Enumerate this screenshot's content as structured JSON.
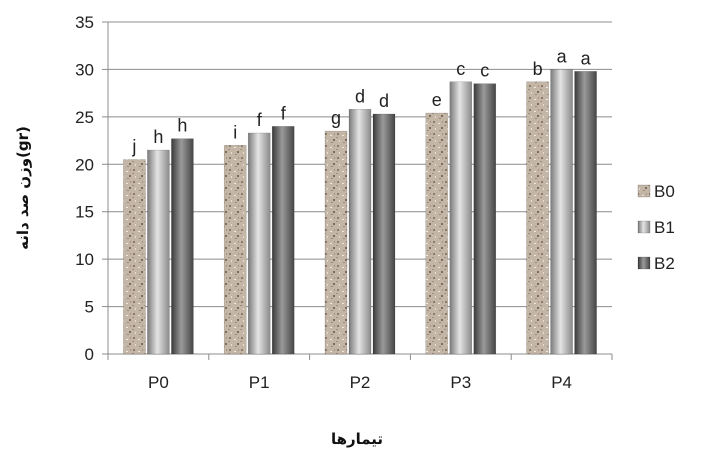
{
  "chart_data": {
    "type": "bar",
    "title": "",
    "xlabel": "تیمارها",
    "ylabel": "وزن صد دانه(gr)",
    "ylim": [
      0,
      35
    ],
    "yticks": [
      0,
      5,
      10,
      15,
      20,
      25,
      30,
      35
    ],
    "grid": true,
    "legend_position": "right",
    "categories": [
      "P0",
      "P1",
      "P2",
      "P3",
      "P4"
    ],
    "series": [
      {
        "name": "B0",
        "values": [
          20.5,
          22.0,
          23.5,
          25.4,
          28.7
        ],
        "labels": [
          "j",
          "i",
          "g",
          "e",
          "b"
        ],
        "color": "#b8a898",
        "pattern": "granite"
      },
      {
        "name": "B1",
        "values": [
          21.5,
          23.3,
          25.8,
          28.7,
          30.0
        ],
        "labels": [
          "h",
          "f",
          "d",
          "c",
          "a"
        ],
        "color": "#a6a6a6",
        "pattern": "light-gradient"
      },
      {
        "name": "B2",
        "values": [
          22.7,
          24.0,
          25.3,
          28.5,
          29.8
        ],
        "labels": [
          "h",
          "f",
          "d",
          "c",
          "a"
        ],
        "color": "#666666",
        "pattern": "dark-gradient"
      }
    ]
  }
}
